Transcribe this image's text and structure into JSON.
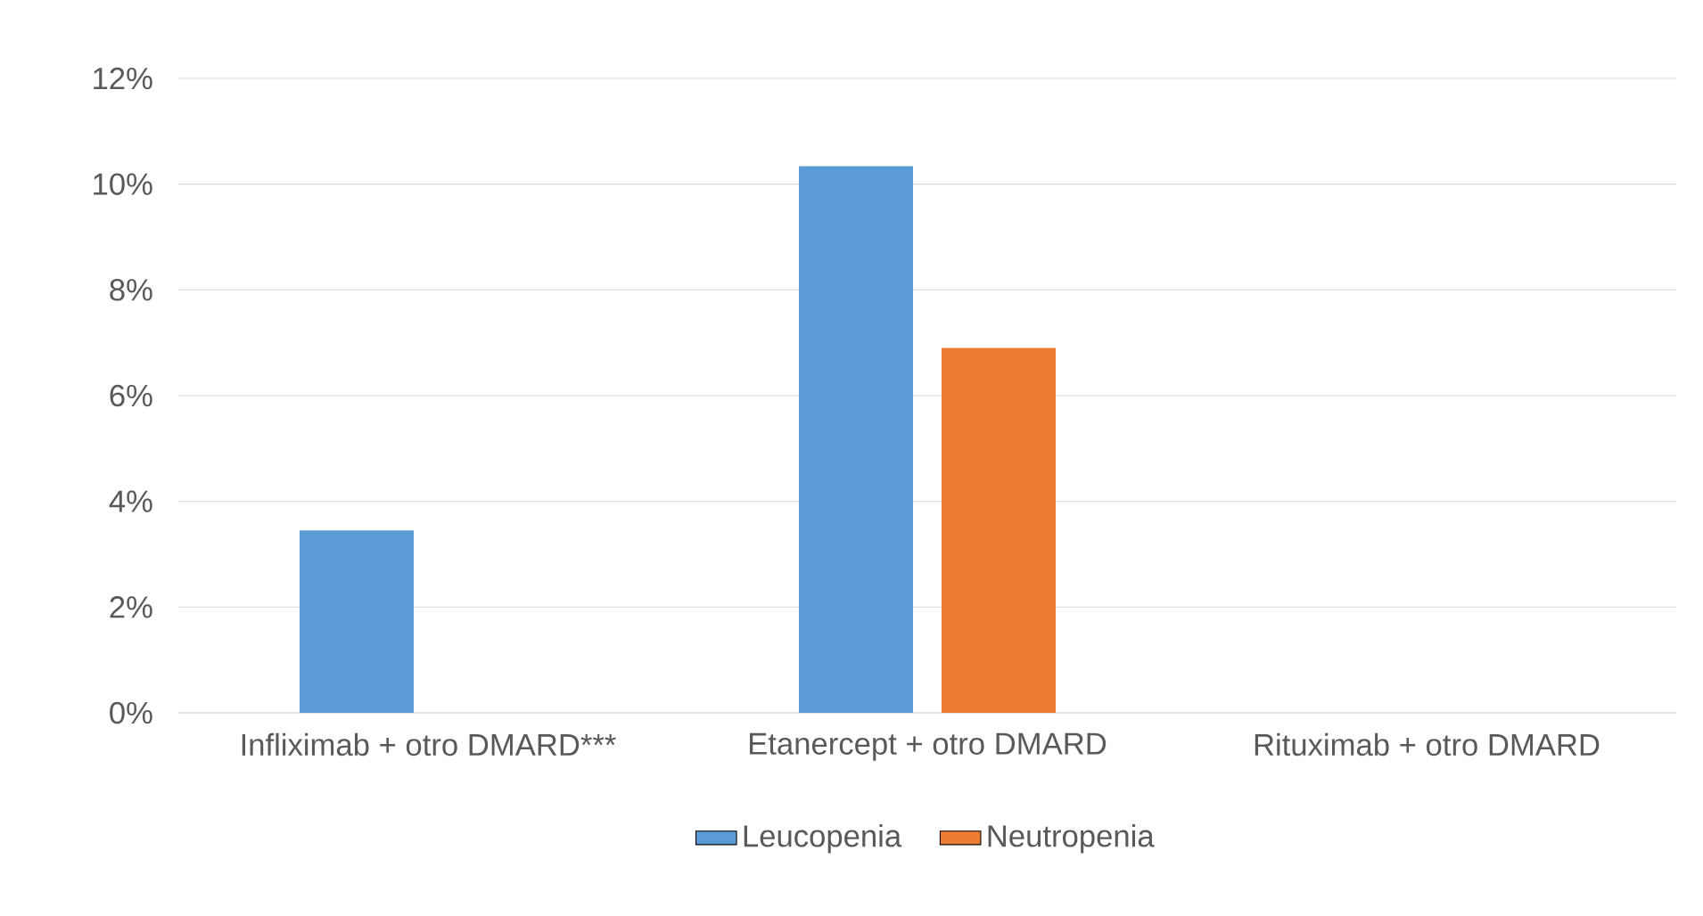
{
  "chart_data": {
    "type": "bar",
    "categories": [
      "Infliximab + otro DMARD***",
      "Etanercept + otro DMARD",
      "Rituximab + otro DMARD"
    ],
    "series": [
      {
        "name": "Leucopenia",
        "color": "#5b9bd5",
        "values": [
          3.45,
          10.34,
          0
        ]
      },
      {
        "name": "Neutropenia",
        "color": "#ed7d31",
        "values": [
          0,
          6.9,
          0
        ]
      }
    ],
    "ylim": [
      0,
      12
    ],
    "yticks": [
      {
        "value": 0,
        "label": "0%"
      },
      {
        "value": 2,
        "label": "2%"
      },
      {
        "value": 4,
        "label": "4%"
      },
      {
        "value": 6,
        "label": "6%"
      },
      {
        "value": 8,
        "label": "8%"
      },
      {
        "value": 10,
        "label": "10%"
      },
      {
        "value": 12,
        "label": "12%"
      }
    ],
    "grid": "y",
    "legend": "bottom"
  }
}
